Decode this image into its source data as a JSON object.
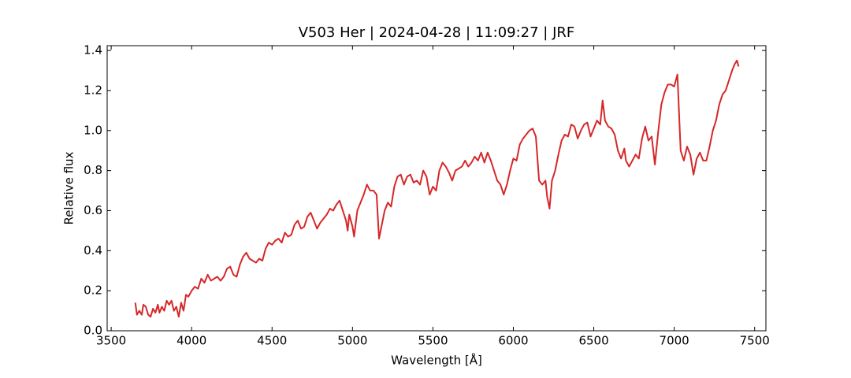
{
  "chart_data": {
    "type": "line",
    "title": "V503 Her | 2024-04-28 | 11:09:27 | JRF",
    "x_label": "Wavelength [Å]",
    "y_label": "Relative flux",
    "color": "#d62728",
    "xlim": [
      3475,
      7570
    ],
    "ylim": [
      0,
      1.424
    ],
    "xticks": [
      3500,
      4000,
      4500,
      5000,
      5500,
      6000,
      6500,
      7000,
      7500
    ],
    "yticks": [
      {
        "value": 0,
        "label": "0.0"
      },
      0.2,
      0.4,
      0.6,
      0.8,
      {
        "value": 1,
        "label": "1.0"
      },
      1.2,
      1.4
    ],
    "x": [
      3650,
      3660,
      3675,
      3690,
      3700,
      3715,
      3730,
      3745,
      3760,
      3775,
      3790,
      3800,
      3815,
      3830,
      3845,
      3860,
      3875,
      3890,
      3905,
      3920,
      3935,
      3950,
      3965,
      3980,
      4000,
      4020,
      4040,
      4060,
      4080,
      4100,
      4120,
      4140,
      4160,
      4180,
      4200,
      4220,
      4240,
      4260,
      4280,
      4300,
      4320,
      4340,
      4360,
      4380,
      4400,
      4420,
      4440,
      4460,
      4480,
      4500,
      4520,
      4540,
      4560,
      4580,
      4600,
      4620,
      4640,
      4660,
      4680,
      4700,
      4720,
      4740,
      4760,
      4780,
      4800,
      4820,
      4840,
      4860,
      4880,
      4900,
      4920,
      4940,
      4960,
      4970,
      4980,
      5000,
      5010,
      5030,
      5050,
      5070,
      5090,
      5110,
      5130,
      5150,
      5165,
      5180,
      5200,
      5220,
      5240,
      5260,
      5280,
      5300,
      5320,
      5340,
      5360,
      5380,
      5400,
      5420,
      5440,
      5460,
      5480,
      5500,
      5520,
      5540,
      5560,
      5580,
      5600,
      5620,
      5640,
      5660,
      5680,
      5700,
      5720,
      5740,
      5760,
      5780,
      5800,
      5820,
      5840,
      5860,
      5880,
      5900,
      5920,
      5940,
      5960,
      5980,
      6000,
      6020,
      6040,
      6060,
      6080,
      6100,
      6120,
      6140,
      6160,
      6180,
      6200,
      6210,
      6225,
      6240,
      6260,
      6280,
      6300,
      6320,
      6340,
      6360,
      6380,
      6400,
      6420,
      6440,
      6460,
      6480,
      6500,
      6520,
      6540,
      6555,
      6570,
      6590,
      6610,
      6630,
      6650,
      6670,
      6690,
      6700,
      6720,
      6740,
      6760,
      6780,
      6800,
      6820,
      6840,
      6860,
      6880,
      6900,
      6920,
      6940,
      6960,
      6980,
      7000,
      7020,
      7040,
      7060,
      7080,
      7100,
      7120,
      7140,
      7160,
      7180,
      7200,
      7220,
      7240,
      7260,
      7280,
      7300,
      7320,
      7340,
      7360,
      7375,
      7390,
      7400
    ],
    "values": [
      0.14,
      0.08,
      0.1,
      0.08,
      0.13,
      0.12,
      0.08,
      0.07,
      0.11,
      0.09,
      0.13,
      0.09,
      0.12,
      0.1,
      0.15,
      0.13,
      0.15,
      0.1,
      0.12,
      0.07,
      0.14,
      0.1,
      0.18,
      0.17,
      0.2,
      0.22,
      0.21,
      0.26,
      0.24,
      0.28,
      0.25,
      0.26,
      0.27,
      0.25,
      0.27,
      0.31,
      0.32,
      0.28,
      0.27,
      0.33,
      0.37,
      0.39,
      0.36,
      0.35,
      0.34,
      0.36,
      0.35,
      0.41,
      0.44,
      0.43,
      0.45,
      0.46,
      0.44,
      0.49,
      0.47,
      0.48,
      0.53,
      0.55,
      0.51,
      0.52,
      0.57,
      0.59,
      0.55,
      0.51,
      0.54,
      0.56,
      0.58,
      0.61,
      0.6,
      0.63,
      0.65,
      0.6,
      0.55,
      0.5,
      0.58,
      0.52,
      0.47,
      0.6,
      0.64,
      0.68,
      0.73,
      0.7,
      0.7,
      0.68,
      0.46,
      0.52,
      0.6,
      0.64,
      0.62,
      0.72,
      0.77,
      0.78,
      0.73,
      0.77,
      0.78,
      0.74,
      0.75,
      0.73,
      0.8,
      0.77,
      0.68,
      0.72,
      0.7,
      0.8,
      0.84,
      0.82,
      0.79,
      0.75,
      0.8,
      0.81,
      0.82,
      0.85,
      0.82,
      0.84,
      0.87,
      0.85,
      0.89,
      0.84,
      0.89,
      0.85,
      0.8,
      0.75,
      0.73,
      0.68,
      0.73,
      0.8,
      0.86,
      0.85,
      0.93,
      0.96,
      0.98,
      1.0,
      1.01,
      0.97,
      0.75,
      0.73,
      0.75,
      0.67,
      0.61,
      0.75,
      0.8,
      0.88,
      0.95,
      0.98,
      0.97,
      1.03,
      1.02,
      0.96,
      1.0,
      1.03,
      1.04,
      0.97,
      1.01,
      1.05,
      1.03,
      1.15,
      1.05,
      1.02,
      1.01,
      0.98,
      0.9,
      0.86,
      0.91,
      0.85,
      0.82,
      0.85,
      0.88,
      0.86,
      0.96,
      1.02,
      0.95,
      0.97,
      0.83,
      0.99,
      1.13,
      1.19,
      1.23,
      1.23,
      1.22,
      1.28,
      0.9,
      0.85,
      0.92,
      0.88,
      0.78,
      0.86,
      0.89,
      0.85,
      0.85,
      0.92,
      1.0,
      1.05,
      1.13,
      1.18,
      1.2,
      1.25,
      1.3,
      1.33,
      1.35,
      1.32
    ]
  }
}
